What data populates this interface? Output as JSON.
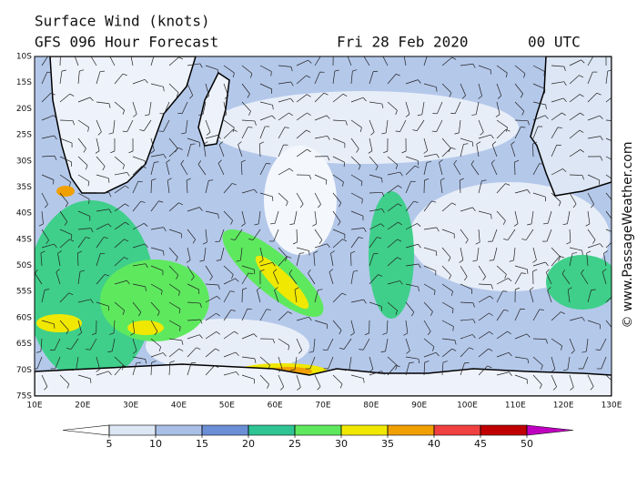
{
  "header": {
    "title": "Surface Wind (knots)",
    "model": "GFS 096 Hour Forecast",
    "date": "Fri 28 Feb 2020",
    "time": "00 UTC"
  },
  "map": {
    "latitude_labels": [
      "10S",
      "15S",
      "20S",
      "25S",
      "30S",
      "35S",
      "40S",
      "45S",
      "50S",
      "55S",
      "60S",
      "65S",
      "70S",
      "75S"
    ],
    "longitude_labels": [
      "10E",
      "20E",
      "30E",
      "40E",
      "50E",
      "60E",
      "70E",
      "80E",
      "90E",
      "100E",
      "110E",
      "120E",
      "130E"
    ]
  },
  "colorbar": {
    "ticks": [
      5,
      10,
      15,
      20,
      25,
      30,
      35,
      40,
      45,
      50
    ],
    "colors": [
      "#ffffff",
      "#dce6f4",
      "#a9bfe6",
      "#6a8fd6",
      "#2fc494",
      "#5ee85e",
      "#f0e800",
      "#f0a000",
      "#f04040",
      "#c00000",
      "#c000c0"
    ]
  },
  "credit": "© www.PassageWeather.com"
}
